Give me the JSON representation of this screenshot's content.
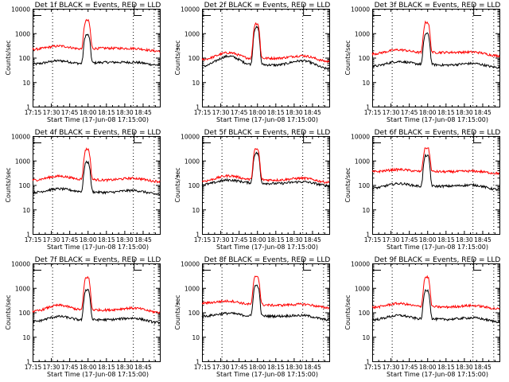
{
  "chart_data": [
    {
      "type": "line",
      "title": "Det 1f BLACK = Events, RED = LLD",
      "xlabel": "Start Time (17-Jun-08 17:15:00)",
      "ylabel": "Counts/sec",
      "yscale": "log",
      "ylim": [
        1,
        10000
      ],
      "xlim_minutes": [
        0,
        104
      ],
      "xticks": [
        "17:15",
        "17:30",
        "17:45",
        "18:00",
        "18:15",
        "18:30",
        "18:45"
      ],
      "yticks": [
        "1",
        "10",
        "100",
        "1000",
        "10000"
      ],
      "vlines_minutes": [
        16,
        82,
        99
      ],
      "series": [
        {
          "name": "Events",
          "color": "#000000",
          "base": [
            55,
            75,
            58,
            65,
            65,
            50
          ],
          "peak": 850
        },
        {
          "name": "LLD",
          "color": "#ff0000",
          "base": [
            220,
            300,
            230,
            245,
            240,
            185
          ],
          "peak": 3300
        }
      ]
    },
    {
      "type": "line",
      "title": "Det 2f BLACK = Events, RED = LLD",
      "xlabel": "Start Time (17-Jun-08 17:15:00)",
      "ylabel": "Counts/sec",
      "yscale": "log",
      "ylim": [
        1,
        10000
      ],
      "xlim_minutes": [
        0,
        104
      ],
      "xticks": [
        "17:15",
        "17:30",
        "17:45",
        "18:00",
        "18:15",
        "18:30",
        "18:45"
      ],
      "yticks": [
        "1",
        "10",
        "100",
        "1000",
        "10000"
      ],
      "vlines_minutes": [
        16,
        82,
        99
      ],
      "series": [
        {
          "name": "Events",
          "color": "#000000",
          "base": [
            45,
            115,
            55,
            50,
            75,
            35
          ],
          "peak": 1700
        },
        {
          "name": "LLD",
          "color": "#ff0000",
          "base": [
            85,
            160,
            95,
            95,
            120,
            70
          ],
          "peak": 2500
        }
      ]
    },
    {
      "type": "line",
      "title": "Det 3f BLACK = Events, RED = LLD",
      "xlabel": "Start Time (17-Jun-08 17:15:00)",
      "ylabel": "Counts/sec",
      "yscale": "log",
      "ylim": [
        1,
        10000
      ],
      "xlim_minutes": [
        0,
        104
      ],
      "xticks": [
        "17:15",
        "17:30",
        "17:45",
        "18:00",
        "18:15",
        "18:30",
        "18:45"
      ],
      "yticks": [
        "1",
        "10",
        "100",
        "1000",
        "10000"
      ],
      "vlines_minutes": [
        16,
        82,
        99
      ],
      "series": [
        {
          "name": "Events",
          "color": "#000000",
          "base": [
            45,
            70,
            55,
            50,
            58,
            40
          ],
          "peak": 950
        },
        {
          "name": "LLD",
          "color": "#ff0000",
          "base": [
            145,
            210,
            165,
            165,
            170,
            120
          ],
          "peak": 2800
        }
      ]
    },
    {
      "type": "line",
      "title": "Det 4f BLACK = Events, RED = LLD",
      "xlabel": "Start Time (17-Jun-08 17:15:00)",
      "ylabel": "Counts/sec",
      "yscale": "log",
      "ylim": [
        1,
        10000
      ],
      "xlim_minutes": [
        0,
        104
      ],
      "xticks": [
        "17:15",
        "17:30",
        "17:45",
        "18:00",
        "18:15",
        "18:30",
        "18:45"
      ],
      "yticks": [
        "1",
        "10",
        "100",
        "1000",
        "10000"
      ],
      "vlines_minutes": [
        16,
        82,
        99
      ],
      "series": [
        {
          "name": "Events",
          "color": "#000000",
          "base": [
            50,
            70,
            55,
            50,
            60,
            42
          ],
          "peak": 850
        },
        {
          "name": "LLD",
          "color": "#ff0000",
          "base": [
            160,
            230,
            175,
            160,
            190,
            140
          ],
          "peak": 2900
        }
      ]
    },
    {
      "type": "line",
      "title": "Det 5f BLACK = Events, RED = LLD",
      "xlabel": "Start Time (17-Jun-08 17:15:00)",
      "ylabel": "Counts/sec",
      "yscale": "log",
      "ylim": [
        1,
        10000
      ],
      "xlim_minutes": [
        0,
        104
      ],
      "xticks": [
        "17:15",
        "17:30",
        "17:45",
        "18:00",
        "18:15",
        "18:30",
        "18:45"
      ],
      "yticks": [
        "1",
        "10",
        "100",
        "1000",
        "10000"
      ],
      "vlines_minutes": [
        16,
        82,
        99
      ],
      "series": [
        {
          "name": "Events",
          "color": "#000000",
          "base": [
            105,
            160,
            125,
            115,
            135,
            95
          ],
          "peak": 2000
        },
        {
          "name": "LLD",
          "color": "#ff0000",
          "base": [
            145,
            240,
            170,
            160,
            190,
            130
          ],
          "peak": 2900
        }
      ]
    },
    {
      "type": "line",
      "title": "Det 6f BLACK = Events, RED = LLD",
      "xlabel": "Start Time (17-Jun-08 17:15:00)",
      "ylabel": "Counts/sec",
      "yscale": "log",
      "ylim": [
        1,
        10000
      ],
      "xlim_minutes": [
        0,
        104
      ],
      "xticks": [
        "17:15",
        "17:30",
        "17:45",
        "18:00",
        "18:15",
        "18:30",
        "18:45"
      ],
      "yticks": [
        "1",
        "10",
        "100",
        "1000",
        "10000"
      ],
      "vlines_minutes": [
        16,
        82,
        99
      ],
      "series": [
        {
          "name": "Events",
          "color": "#000000",
          "base": [
            75,
            115,
            90,
            90,
            100,
            65
          ],
          "peak": 1600
        },
        {
          "name": "LLD",
          "color": "#ff0000",
          "base": [
            350,
            430,
            360,
            350,
            370,
            300
          ],
          "peak": 3300
        }
      ]
    },
    {
      "type": "line",
      "title": "Det 7f BLACK = Events, RED = LLD",
      "xlabel": "Start Time (17-Jun-08 17:15:00)",
      "ylabel": "Counts/sec",
      "yscale": "log",
      "ylim": [
        1,
        10000
      ],
      "xlim_minutes": [
        0,
        104
      ],
      "xticks": [
        "17:15",
        "17:30",
        "17:45",
        "18:00",
        "18:15",
        "18:30",
        "18:45"
      ],
      "yticks": [
        "1",
        "10",
        "100",
        "1000",
        "10000"
      ],
      "vlines_minutes": [
        16,
        82,
        99
      ],
      "series": [
        {
          "name": "Events",
          "color": "#000000",
          "base": [
            42,
            68,
            50,
            50,
            58,
            38
          ],
          "peak": 850
        },
        {
          "name": "LLD",
          "color": "#ff0000",
          "base": [
            110,
            195,
            130,
            125,
            150,
            100
          ],
          "peak": 2700
        }
      ]
    },
    {
      "type": "line",
      "title": "Det 8f BLACK = Events, RED = LLD",
      "xlabel": "Start Time (17-Jun-08 17:15:00)",
      "ylabel": "Counts/sec",
      "yscale": "log",
      "ylim": [
        1,
        10000
      ],
      "xlim_minutes": [
        0,
        104
      ],
      "xticks": [
        "17:15",
        "17:30",
        "17:45",
        "18:00",
        "18:15",
        "18:30",
        "18:45"
      ],
      "yticks": [
        "1",
        "10",
        "100",
        "1000",
        "10000"
      ],
      "vlines_minutes": [
        16,
        82,
        99
      ],
      "series": [
        {
          "name": "Events",
          "color": "#000000",
          "base": [
            70,
            92,
            72,
            70,
            75,
            50
          ],
          "peak": 1250
        },
        {
          "name": "LLD",
          "color": "#ff0000",
          "base": [
            240,
            290,
            215,
            195,
            215,
            155
          ],
          "peak": 3000
        }
      ]
    },
    {
      "type": "line",
      "title": "Det 9f BLACK = Events, RED = LLD",
      "xlabel": "Start Time (17-Jun-08 17:15:00)",
      "ylabel": "Counts/sec",
      "yscale": "log",
      "ylim": [
        1,
        10000
      ],
      "xlim_minutes": [
        0,
        104
      ],
      "xticks": [
        "17:15",
        "17:30",
        "17:45",
        "18:00",
        "18:15",
        "18:30",
        "18:45"
      ],
      "yticks": [
        "1",
        "10",
        "100",
        "1000",
        "10000"
      ],
      "vlines_minutes": [
        16,
        82,
        99
      ],
      "series": [
        {
          "name": "Events",
          "color": "#000000",
          "base": [
            50,
            75,
            55,
            52,
            60,
            42
          ],
          "peak": 800
        },
        {
          "name": "LLD",
          "color": "#ff0000",
          "base": [
            160,
            230,
            175,
            165,
            190,
            140
          ],
          "peak": 2800
        }
      ]
    }
  ]
}
